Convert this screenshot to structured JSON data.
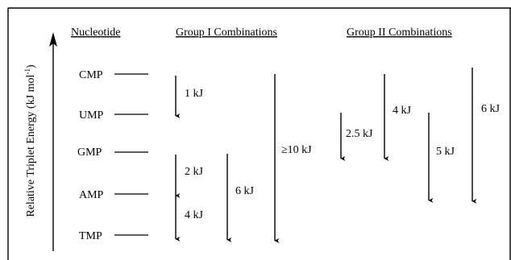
{
  "headers": {
    "nucleotide": "Nucleotide",
    "group1": "Group I Combinations",
    "group2": "Group II Combinations"
  },
  "y_axis_label": "Relative Triplet Energy (kJ mol",
  "y_axis_label_sup": "-1",
  "y_axis_label_close": ")",
  "nucleotides": [
    "CMP",
    "UMP",
    "GMP",
    "AMP",
    "TMP"
  ],
  "group1_arrows": [
    {
      "from": "CMP",
      "to": "UMP",
      "label": "1 kJ"
    },
    {
      "from": "GMP",
      "to": "AMP",
      "label": "2 kJ"
    },
    {
      "from": "AMP",
      "to": "TMP",
      "label": "4 kJ"
    },
    {
      "from": "GMP",
      "to": "TMP",
      "label": "6 kJ"
    },
    {
      "from": "CMP",
      "to": "TMP",
      "label": "≥10 kJ"
    }
  ],
  "group2_arrows": [
    {
      "label": "2.5 kJ"
    },
    {
      "label": "4 kJ"
    },
    {
      "label": "5 kJ"
    },
    {
      "label": "6 kJ"
    }
  ]
}
